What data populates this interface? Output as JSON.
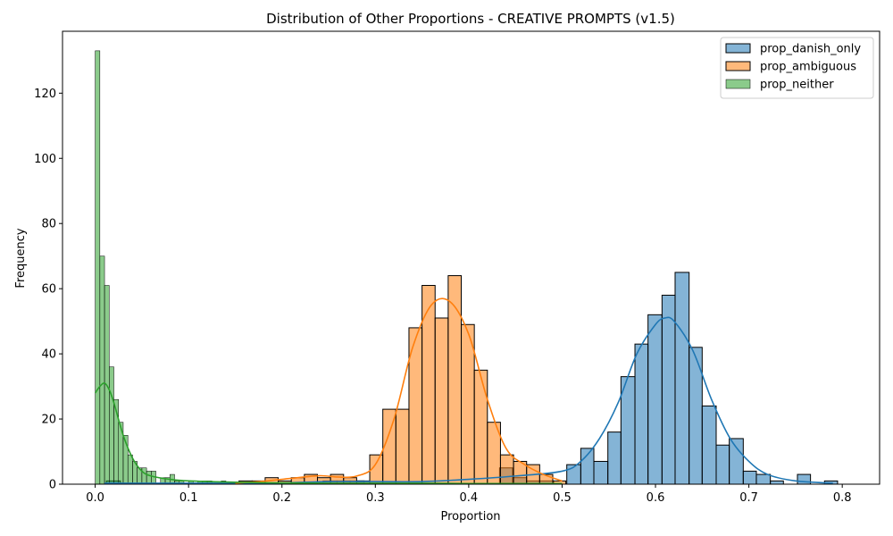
{
  "chart_data": {
    "type": "bar",
    "title": "Distribution of Other Proportions - CREATIVE PROMPTS (v1.5)",
    "xlabel": "Proportion",
    "ylabel": "Frequency",
    "xlim": [
      -0.035,
      0.84
    ],
    "ylim": [
      0,
      139
    ],
    "x_ticks": [
      {
        "value": 0.0,
        "label": "0.0"
      },
      {
        "value": 0.1,
        "label": "0.1"
      },
      {
        "value": 0.2,
        "label": "0.2"
      },
      {
        "value": 0.3,
        "label": "0.3"
      },
      {
        "value": 0.4,
        "label": "0.4"
      },
      {
        "value": 0.5,
        "label": "0.5"
      },
      {
        "value": 0.6,
        "label": "0.6"
      },
      {
        "value": 0.7,
        "label": "0.7"
      },
      {
        "value": 0.8,
        "label": "0.8"
      }
    ],
    "y_ticks": [
      {
        "value": 0,
        "label": "0"
      },
      {
        "value": 20,
        "label": "20"
      },
      {
        "value": 40,
        "label": "40"
      },
      {
        "value": 60,
        "label": "60"
      },
      {
        "value": 80,
        "label": "80"
      },
      {
        "value": 100,
        "label": "100"
      },
      {
        "value": 120,
        "label": "120"
      }
    ],
    "grid": false,
    "legend_position": "top-right",
    "series": [
      {
        "name": "prop_danish_only",
        "color": "#1f77b4",
        "fill": "rgba(31,119,180,0.55)",
        "bin_edges": [
          0.012,
          0.027,
          0.041,
          0.056,
          0.07,
          0.085,
          0.099,
          0.114,
          0.128,
          0.143,
          0.157,
          0.172,
          0.186,
          0.201,
          0.215,
          0.23,
          0.244,
          0.259,
          0.273,
          0.288,
          0.302,
          0.317,
          0.331,
          0.346,
          0.36,
          0.375,
          0.389,
          0.404,
          0.418,
          0.433,
          0.447,
          0.462,
          0.476,
          0.491,
          0.505,
          0.52,
          0.534,
          0.549,
          0.563,
          0.578,
          0.592,
          0.607,
          0.621,
          0.636,
          0.65,
          0.665,
          0.679,
          0.694,
          0.708,
          0.723,
          0.737,
          0.752,
          0.766,
          0.781,
          0.795
        ],
        "values": [
          1,
          0,
          0,
          0,
          0,
          0,
          0,
          0,
          0,
          0,
          0,
          0,
          0,
          0,
          0,
          0,
          1,
          1,
          1,
          0,
          0,
          0,
          0,
          0,
          0,
          0,
          0,
          0,
          0,
          5,
          2,
          1,
          1,
          0,
          6,
          11,
          7,
          16,
          33,
          43,
          52,
          58,
          65,
          42,
          24,
          12,
          14,
          4,
          3,
          1,
          0,
          3,
          0,
          1
        ],
        "kde": {
          "x": [
            0.01,
            0.05,
            0.1,
            0.15,
            0.2,
            0.25,
            0.3,
            0.35,
            0.4,
            0.45,
            0.5,
            0.52,
            0.54,
            0.56,
            0.58,
            0.6,
            0.61,
            0.62,
            0.64,
            0.66,
            0.68,
            0.7,
            0.72,
            0.75,
            0.79
          ],
          "y": [
            0.3,
            0.3,
            0.3,
            0.3,
            0.4,
            0.8,
            0.8,
            0.8,
            1.5,
            2.5,
            4,
            7,
            14,
            25,
            40,
            49,
            51,
            50,
            41,
            26,
            14,
            7,
            3,
            1,
            0.3
          ]
        }
      },
      {
        "name": "prop_ambiguous",
        "color": "#ff7f0e",
        "fill": "rgba(255,127,14,0.55)",
        "bin_edges": [
          0.154,
          0.168,
          0.182,
          0.196,
          0.21,
          0.224,
          0.238,
          0.252,
          0.266,
          0.28,
          0.294,
          0.308,
          0.322,
          0.336,
          0.35,
          0.364,
          0.378,
          0.392,
          0.406,
          0.42,
          0.434,
          0.448,
          0.462,
          0.476,
          0.49,
          0.504
        ],
        "values": [
          1,
          1,
          2,
          1,
          2,
          3,
          2,
          3,
          2,
          1,
          9,
          23,
          23,
          48,
          61,
          51,
          64,
          49,
          35,
          19,
          9,
          7,
          6,
          3,
          1
        ],
        "kde": {
          "x": [
            0.15,
            0.18,
            0.21,
            0.24,
            0.26,
            0.28,
            0.3,
            0.32,
            0.34,
            0.36,
            0.38,
            0.4,
            0.42,
            0.44,
            0.46,
            0.48,
            0.5
          ],
          "y": [
            0.3,
            0.9,
            1.8,
            2.6,
            2.2,
            2.5,
            6,
            20,
            42,
            55,
            56,
            46,
            26,
            11,
            6,
            3,
            1
          ]
        }
      },
      {
        "name": "prop_neither",
        "color": "#2ca02c",
        "fill": "rgba(44,160,44,0.55)",
        "bin_edges": [
          0.0,
          0.005,
          0.01,
          0.015,
          0.02,
          0.025,
          0.03,
          0.035,
          0.04,
          0.045,
          0.05,
          0.055,
          0.06,
          0.065,
          0.07,
          0.075,
          0.08,
          0.085,
          0.09,
          0.095,
          0.1,
          0.105,
          0.11,
          0.115,
          0.12,
          0.125,
          0.13,
          0.135,
          0.14
        ],
        "values": [
          133,
          70,
          61,
          36,
          26,
          19,
          15,
          9,
          7,
          5,
          5,
          4,
          4,
          0,
          2,
          2,
          3,
          1,
          1,
          0,
          1,
          0,
          1,
          1,
          1,
          0,
          0,
          1
        ],
        "kde": {
          "x": [
            0.0,
            0.005,
            0.01,
            0.015,
            0.02,
            0.03,
            0.04,
            0.05,
            0.06,
            0.08,
            0.1,
            0.15,
            0.2,
            0.25,
            0.3,
            0.35,
            0.4,
            0.45,
            0.5
          ],
          "y": [
            28,
            30,
            31,
            29,
            25,
            15,
            8,
            4,
            2.5,
            1.5,
            1,
            0.6,
            0.4,
            0.3,
            0.3,
            0.3,
            0.2,
            0.2,
            0.2
          ]
        }
      }
    ]
  }
}
